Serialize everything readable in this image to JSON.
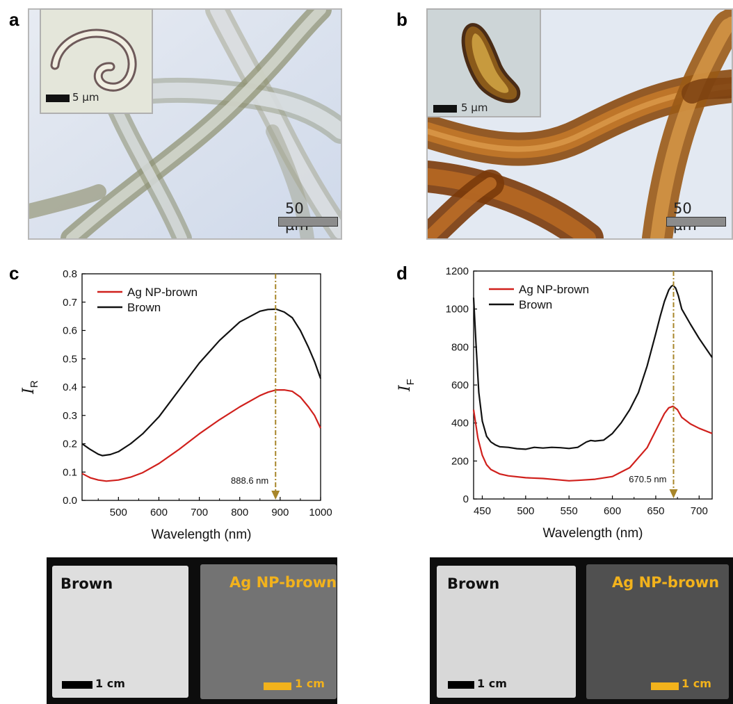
{
  "panels": {
    "a": {
      "label": "a",
      "inset_scale": "5 µm",
      "main_scale": "50 µm"
    },
    "b": {
      "label": "b",
      "inset_scale": "5 µm",
      "main_scale": "50 µm"
    },
    "c": {
      "label": "c"
    },
    "d": {
      "label": "d"
    }
  },
  "photos": [
    {
      "left_label": "Brown",
      "right_label": "Ag NP-brown",
      "left_scale": "1 cm",
      "right_scale": "1 cm"
    },
    {
      "left_label": "Brown",
      "right_label": "Ag NP-brown",
      "left_scale": "1 cm",
      "right_scale": "1 cm"
    }
  ],
  "colors": {
    "ag_np_brown": "#d0201c",
    "brown": "#111111",
    "marker": "#a8862a",
    "photo_label": "#f2b21c"
  },
  "chart_data": [
    {
      "type": "line",
      "title": "",
      "xlabel": "Wavelength (nm)",
      "ylabel_main": "I",
      "ylabel_sub": "R",
      "xlim": [
        410,
        1000
      ],
      "ylim": [
        0,
        0.8
      ],
      "xticks": [
        500,
        600,
        700,
        800,
        900,
        1000
      ],
      "yticks": [
        "0.0",
        "0.1",
        "0.2",
        "0.3",
        "0.4",
        "0.5",
        "0.6",
        "0.7",
        "0.8"
      ],
      "legend_position": "top-left",
      "marker": {
        "x": 888.6,
        "label": "888.6 nm"
      },
      "series": [
        {
          "name": "Ag NP-brown",
          "color": "#d0201c",
          "x": [
            410,
            430,
            450,
            470,
            500,
            530,
            560,
            600,
            650,
            700,
            750,
            800,
            850,
            870,
            890,
            910,
            930,
            950,
            970,
            985,
            1000
          ],
          "y": [
            0.095,
            0.08,
            0.072,
            0.068,
            0.072,
            0.082,
            0.098,
            0.13,
            0.18,
            0.235,
            0.285,
            0.33,
            0.37,
            0.382,
            0.39,
            0.39,
            0.385,
            0.365,
            0.33,
            0.3,
            0.255
          ]
        },
        {
          "name": "Brown",
          "color": "#111111",
          "x": [
            410,
            430,
            450,
            460,
            480,
            500,
            530,
            560,
            600,
            650,
            700,
            750,
            800,
            850,
            870,
            890,
            910,
            930,
            950,
            970,
            985,
            1000
          ],
          "y": [
            0.2,
            0.18,
            0.163,
            0.158,
            0.162,
            0.172,
            0.2,
            0.235,
            0.295,
            0.39,
            0.485,
            0.565,
            0.63,
            0.668,
            0.674,
            0.675,
            0.665,
            0.645,
            0.6,
            0.54,
            0.49,
            0.43
          ]
        }
      ]
    },
    {
      "type": "line",
      "title": "",
      "xlabel": "Wavelength (nm)",
      "ylabel_main": "I",
      "ylabel_sub": "F",
      "xlim": [
        440,
        715
      ],
      "ylim": [
        0,
        1200
      ],
      "xticks": [
        450,
        500,
        550,
        600,
        650,
        700
      ],
      "yticks": [
        "0",
        "200",
        "400",
        "600",
        "800",
        "1000",
        "1200"
      ],
      "legend_position": "top-left",
      "marker": {
        "x": 670.5,
        "label": "670.5 nm"
      },
      "series": [
        {
          "name": "Ag NP-brown",
          "color": "#d0201c",
          "x": [
            440,
            445,
            450,
            455,
            460,
            470,
            480,
            500,
            520,
            540,
            550,
            560,
            580,
            600,
            620,
            640,
            650,
            660,
            665,
            670,
            675,
            680,
            690,
            700,
            715
          ],
          "y": [
            470,
            320,
            230,
            180,
            155,
            132,
            122,
            112,
            108,
            100,
            96,
            98,
            104,
            118,
            165,
            270,
            360,
            450,
            480,
            488,
            470,
            430,
            395,
            372,
            345
          ]
        },
        {
          "name": "Brown",
          "color": "#111111",
          "x": [
            440,
            443,
            446,
            450,
            455,
            460,
            465,
            470,
            480,
            490,
            500,
            510,
            520,
            530,
            540,
            550,
            560,
            570,
            575,
            580,
            590,
            600,
            610,
            620,
            630,
            640,
            650,
            655,
            660,
            665,
            668,
            670,
            673,
            676,
            680,
            690,
            700,
            715
          ],
          "y": [
            1060,
            800,
            560,
            410,
            330,
            300,
            285,
            275,
            272,
            265,
            262,
            272,
            268,
            272,
            270,
            266,
            272,
            300,
            308,
            305,
            310,
            345,
            400,
            470,
            560,
            700,
            870,
            960,
            1040,
            1100,
            1120,
            1125,
            1110,
            1070,
            1000,
            920,
            845,
            745
          ]
        }
      ]
    }
  ]
}
